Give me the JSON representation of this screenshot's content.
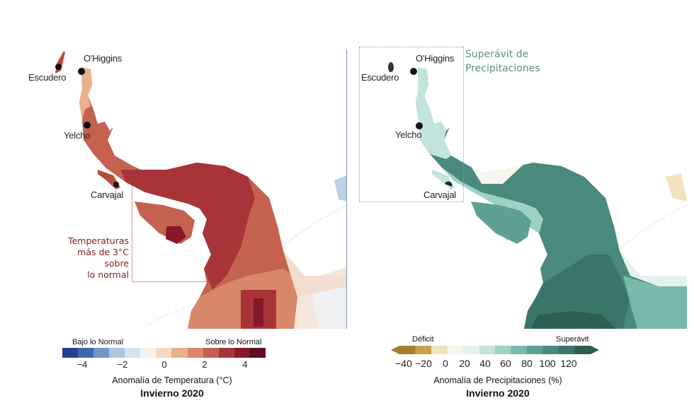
{
  "stations": [
    "Escudero",
    "O'Higgins",
    "Yelcho",
    "Carvajal"
  ],
  "temperature_map": {
    "annotation": [
      "Temperaturas",
      "más de 3°C",
      "sobre",
      "lo normal"
    ],
    "colorbar": {
      "left_label": "Bajo lo Normal",
      "right_label": "Sobre lo Normal",
      "ticks": [
        "−4",
        "−2",
        "0",
        "2",
        "4"
      ],
      "colors": [
        "#26428b",
        "#3d69aa",
        "#6f98c8",
        "#a9c6e0",
        "#d3e2ee",
        "#f4f1ee",
        "#f5d9c4",
        "#e9b08c",
        "#d9876a",
        "#c5624f",
        "#a8343a",
        "#87182b",
        "#5e0d22"
      ],
      "title": "Anomalía de Temperatura (°C)",
      "season": "Invierno 2020"
    }
  },
  "precip_map": {
    "annotation": [
      "Superávit de",
      "Precipitaciones"
    ],
    "colorbar": {
      "left_label": "Déficit",
      "right_label": "Superávit",
      "ticks": [
        "−40",
        "−20",
        "0",
        "20",
        "40",
        "60",
        "80",
        "100",
        "120"
      ],
      "colors": [
        "#a97c2a",
        "#c9a04c",
        "#f0e2bd",
        "#f7f5ee",
        "#e4f2ef",
        "#c2e4dc",
        "#9dd1c6",
        "#79b9ac",
        "#5ea093",
        "#4a897d",
        "#3a7569",
        "#2d5e54"
      ],
      "title": "Anomalía de Precipitaciones (%)",
      "season": "Invierno 2020"
    }
  },
  "colors": {
    "temp_annotation": "#7b1f1f",
    "precip_annotation": "#5e8f8a"
  }
}
